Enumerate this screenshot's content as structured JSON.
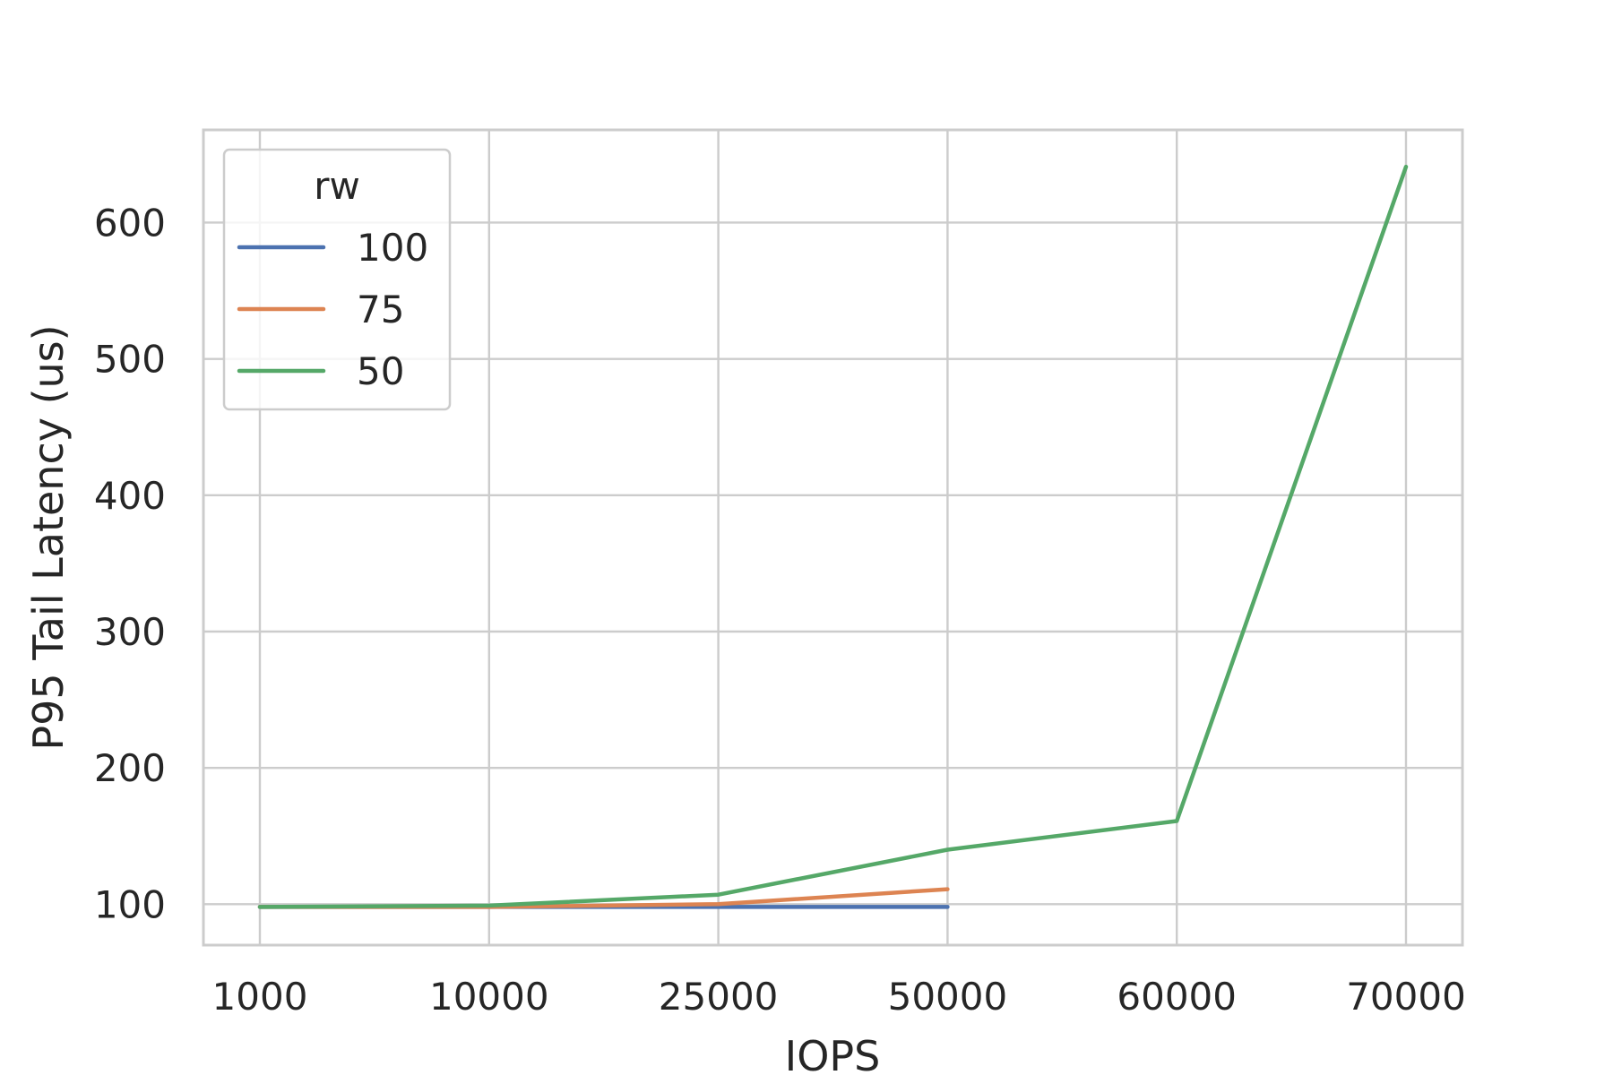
{
  "chart_data": {
    "type": "line",
    "title": "",
    "xlabel": "IOPS",
    "ylabel": "P95 Tail Latency (us)",
    "categories": [
      "1000",
      "10000",
      "25000",
      "50000",
      "60000",
      "70000"
    ],
    "ylim": [
      70,
      668
    ],
    "yticks": [
      100,
      200,
      300,
      400,
      500,
      600
    ],
    "grid": true,
    "legend": {
      "title": "rw",
      "placement": "top-left"
    },
    "series": [
      {
        "name": "100",
        "color": "#4c72b0",
        "values": [
          98,
          98,
          98,
          98,
          null,
          null
        ]
      },
      {
        "name": "75",
        "color": "#dd8452",
        "values": [
          98,
          98,
          100,
          111,
          null,
          null
        ]
      },
      {
        "name": "50",
        "color": "#55a868",
        "values": [
          98,
          99,
          107,
          140,
          161,
          641
        ]
      }
    ]
  }
}
